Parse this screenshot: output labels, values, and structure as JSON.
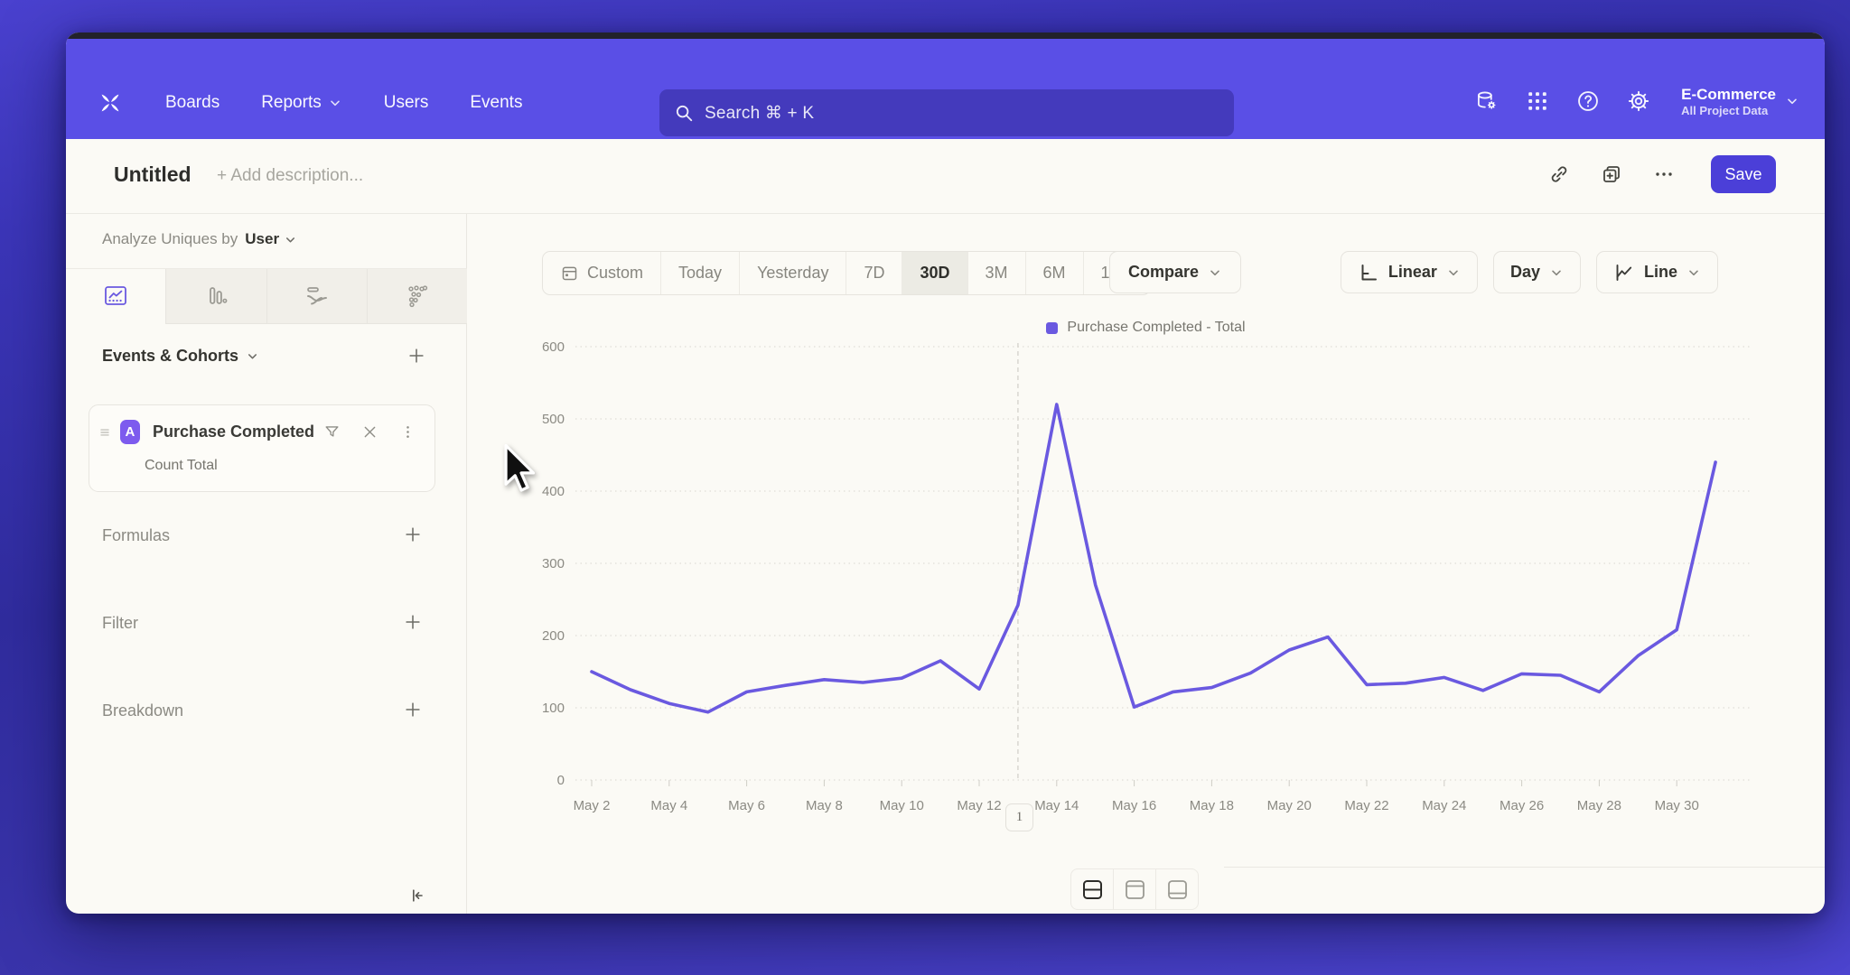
{
  "nav": {
    "links": [
      {
        "label": "Boards",
        "has_chevron": false
      },
      {
        "label": "Reports",
        "has_chevron": true
      },
      {
        "label": "Users",
        "has_chevron": false
      },
      {
        "label": "Events",
        "has_chevron": false
      }
    ],
    "search_placeholder": "Search  ⌘ + K",
    "project_name": "E-Commerce",
    "project_scope": "All Project Data"
  },
  "title_bar": {
    "title": "Untitled",
    "description_placeholder": "+ Add description...",
    "save_label": "Save"
  },
  "sidebar": {
    "analyze_prefix": "Analyze Uniques by",
    "analyze_value": "User",
    "events_header": "Events & Cohorts",
    "event_card": {
      "badge": "A",
      "name": "Purchase Completed",
      "metric": "Count Total"
    },
    "groups": [
      {
        "label": "Formulas"
      },
      {
        "label": "Filter"
      },
      {
        "label": "Breakdown"
      }
    ]
  },
  "toolbar": {
    "date_ranges": [
      "Custom",
      "Today",
      "Yesterday",
      "7D",
      "30D",
      "3M",
      "6M",
      "12M"
    ],
    "selected_range": "30D",
    "compare_label": "Compare",
    "scale_label": "Linear",
    "interval_label": "Day",
    "chart_type_label": "Line"
  },
  "chart_data": {
    "type": "line",
    "legend": "Purchase Completed - Total",
    "series": [
      {
        "name": "Purchase Completed - Total",
        "color": "#6a59e0",
        "x": [
          "May 2",
          "May 3",
          "May 4",
          "May 5",
          "May 6",
          "May 7",
          "May 8",
          "May 9",
          "May 10",
          "May 11",
          "May 12",
          "May 13",
          "May 14",
          "May 15",
          "May 16",
          "May 17",
          "May 18",
          "May 19",
          "May 20",
          "May 21",
          "May 22",
          "May 23",
          "May 24",
          "May 25",
          "May 26",
          "May 27",
          "May 28",
          "May 29",
          "May 30",
          "May 31"
        ],
        "values": [
          150,
          125,
          106,
          94,
          122,
          131,
          139,
          135,
          141,
          165,
          126,
          242,
          520,
          270,
          101,
          122,
          128,
          148,
          180,
          198,
          132,
          134,
          142,
          124,
          147,
          145,
          122,
          172,
          208,
          440
        ]
      }
    ],
    "x_tick_labels": [
      "May 2",
      "May 4",
      "May 6",
      "May 8",
      "May 10",
      "May 12",
      "May 14",
      "May 16",
      "May 18",
      "May 20",
      "May 22",
      "May 24",
      "May 26",
      "May 28",
      "May 30"
    ],
    "y_ticks": [
      0,
      100,
      200,
      300,
      400,
      500,
      600
    ],
    "ylim": [
      0,
      600
    ],
    "grid": "horizontal-dotted",
    "legend_position": "top-center",
    "annotation": {
      "label": "1",
      "x": "May 13"
    }
  },
  "footer": {
    "layout_options": [
      "split-horizontal",
      "panel-top",
      "panel-bottom"
    ],
    "selected_layout": "split-horizontal"
  },
  "colors": {
    "nav_bg": "#5a4fe6",
    "accent": "#4b3fd8",
    "line": "#6a59e0",
    "event_badge": "#7d5bee"
  }
}
